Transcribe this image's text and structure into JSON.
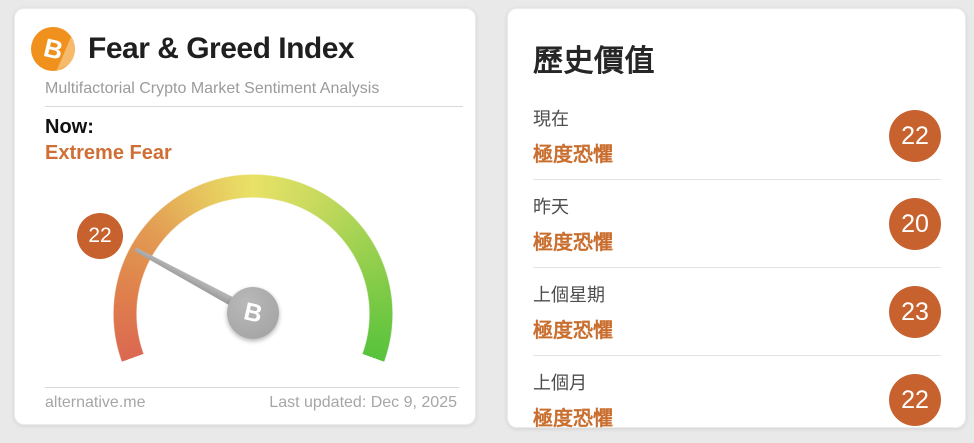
{
  "colors": {
    "accent_orange": "#c7612e",
    "sentiment_text_orange": "#d06f35",
    "gauge_red": "#db6852",
    "gauge_yellow": "#e8e266",
    "gauge_green": "#58c23c",
    "page_background": "#e9e9e9"
  },
  "left_card": {
    "brand_icon": "bitcoin-icon",
    "title": "Fear & Greed Index",
    "subtitle": "Multifactorial Crypto Market Sentiment Analysis",
    "now_label": "Now:",
    "now_value": "Extreme Fear",
    "gauge": {
      "value": 22,
      "min": 0,
      "max": 100,
      "pivot_icon": "bitcoin-icon"
    },
    "footer_left": "alternative.me",
    "footer_right": "Last updated: Dec 9, 2025"
  },
  "right_card": {
    "title": "歷史價值",
    "rows": [
      {
        "label": "現在",
        "sentiment": "極度恐懼",
        "value": 22
      },
      {
        "label": "昨天",
        "sentiment": "極度恐懼",
        "value": 20
      },
      {
        "label": "上個星期",
        "sentiment": "極度恐懼",
        "value": 23
      },
      {
        "label": "上個月",
        "sentiment": "極度恐懼",
        "value": 22
      }
    ]
  },
  "chart_data": {
    "type": "gauge",
    "title": "Fear & Greed Index",
    "value": 22,
    "range": [
      0,
      100
    ],
    "label": "Extreme Fear",
    "history": {
      "categories": [
        "現在",
        "昨天",
        "上個星期",
        "上個月"
      ],
      "values": [
        22,
        20,
        23,
        22
      ],
      "sentiments": [
        "極度恐懼",
        "極度恐懼",
        "極度恐懼",
        "極度恐懼"
      ]
    }
  }
}
